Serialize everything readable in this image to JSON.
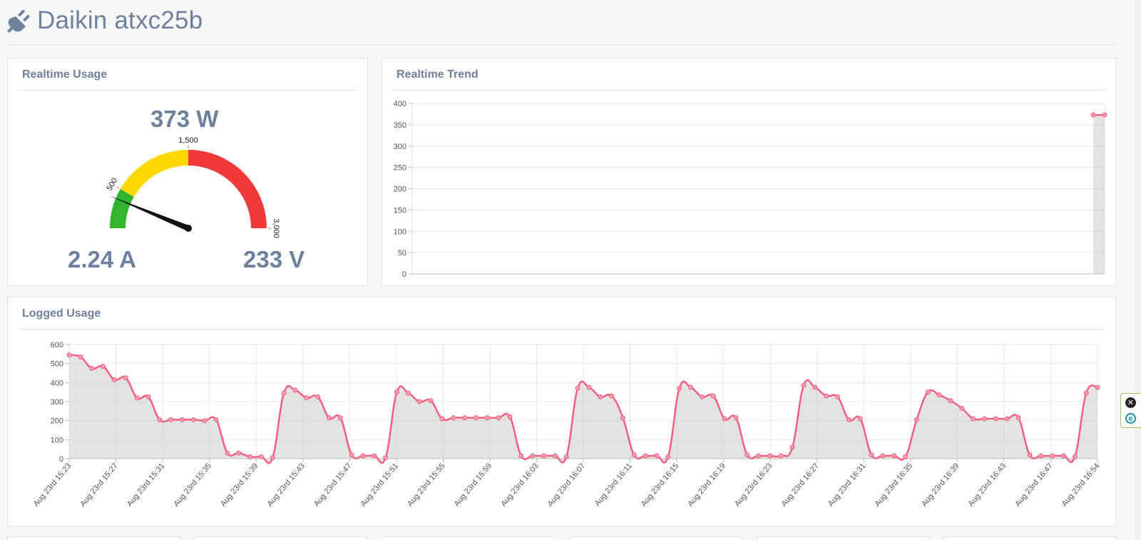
{
  "header": {
    "title": "Daikin atxc25b",
    "icon": "plug-icon"
  },
  "realtime_usage": {
    "title": "Realtime Usage",
    "power": "373 W",
    "current": "2.24 A",
    "voltage": "233 V",
    "gauge": {
      "min": 0,
      "max": 3000,
      "value": 373,
      "green_end": 500,
      "yellow_end": 1500,
      "tick_labels": [
        "500",
        "1,500",
        "3,000"
      ],
      "colors": {
        "green": "#2fb52f",
        "yellow": "#ffd800",
        "red": "#f03a3a",
        "needle": "#111111"
      }
    }
  },
  "chart_data": [
    {
      "type": "area",
      "title": "Realtime Trend",
      "ylim": [
        0,
        400
      ],
      "y_ticks": [
        "400",
        "350",
        "300",
        "250",
        "200",
        "150",
        "100",
        "50",
        "0"
      ],
      "values": [
        373,
        373
      ],
      "color": "#f2607f"
    },
    {
      "type": "area",
      "title": "Logged Usage",
      "ylim": [
        0,
        600
      ],
      "y_ticks": [
        "600",
        "500",
        "400",
        "300",
        "200",
        "100",
        "0"
      ],
      "x_labels": [
        "Aug 23rd 15:23",
        "Aug 23rd 15:27",
        "Aug 23rd 15:31",
        "Aug 23rd 15:35",
        "Aug 23rd 15:39",
        "Aug 23rd 15:43",
        "Aug 23rd 15:47",
        "Aug 23rd 15:51",
        "Aug 23rd 15:55",
        "Aug 23rd 15:59",
        "Aug 23rd 16:03",
        "Aug 23rd 16:07",
        "Aug 23rd 16:11",
        "Aug 23rd 16:15",
        "Aug 23rd 16:19",
        "Aug 23rd 16:23",
        "Aug 23rd 16:27",
        "Aug 23rd 16:31",
        "Aug 23rd 16:35",
        "Aug 23rd 16:39",
        "Aug 23rd 16:43",
        "Aug 23rd 16:47",
        "Aug 23rd 16:54"
      ],
      "values": [
        545,
        535,
        475,
        485,
        415,
        425,
        320,
        325,
        205,
        205,
        205,
        205,
        200,
        205,
        30,
        30,
        10,
        10,
        5,
        345,
        360,
        320,
        325,
        215,
        215,
        20,
        15,
        15,
        5,
        350,
        345,
        300,
        305,
        210,
        215,
        215,
        215,
        215,
        215,
        220,
        15,
        15,
        15,
        15,
        10,
        370,
        375,
        325,
        330,
        215,
        20,
        15,
        15,
        10,
        370,
        375,
        325,
        330,
        210,
        215,
        20,
        15,
        15,
        15,
        60,
        385,
        375,
        330,
        325,
        205,
        210,
        20,
        15,
        15,
        10,
        205,
        350,
        335,
        305,
        265,
        210,
        210,
        210,
        210,
        215,
        20,
        15,
        15,
        15,
        10,
        345,
        375
      ],
      "color": "#f2607f"
    }
  ],
  "side_widget": {
    "close_symbol": "✕",
    "extension_symbol": "e"
  }
}
